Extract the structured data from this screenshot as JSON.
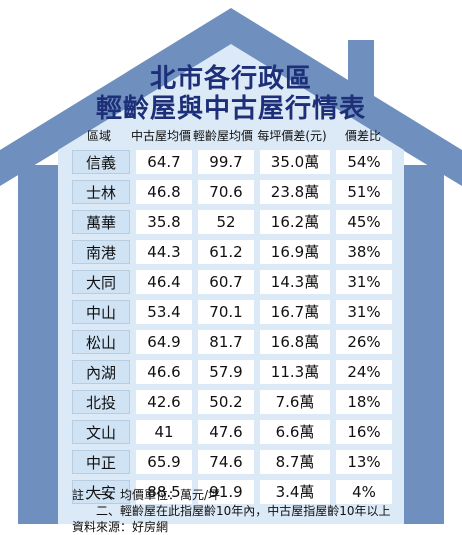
{
  "title_line1": "北市各行政區",
  "title_line2": "輕齡屋與中古屋行情表",
  "columns": [
    "區域",
    "中古屋均價",
    "輕齡屋均價",
    "每坪價差(元)",
    "價差比"
  ],
  "colors": {
    "roof": "#6f8fbe",
    "title": "#1c2f78",
    "district_cell": "#cfe3f4"
  },
  "chart_data": {
    "type": "table",
    "title": "北市各行政區輕齡屋與中古屋行情表",
    "columns": [
      "區域",
      "中古屋均價",
      "輕齡屋均價",
      "每坪價差(元)",
      "價差比"
    ],
    "rows": [
      [
        "信義",
        "64.7",
        "99.7",
        "35.0萬",
        "54%"
      ],
      [
        "士林",
        "46.8",
        "70.6",
        "23.8萬",
        "51%"
      ],
      [
        "萬華",
        "35.8",
        "52",
        "16.2萬",
        "45%"
      ],
      [
        "南港",
        "44.3",
        "61.2",
        "16.9萬",
        "38%"
      ],
      [
        "大同",
        "46.4",
        "60.7",
        "14.3萬",
        "31%"
      ],
      [
        "中山",
        "53.4",
        "70.1",
        "16.7萬",
        "31%"
      ],
      [
        "松山",
        "64.9",
        "81.7",
        "16.8萬",
        "26%"
      ],
      [
        "內湖",
        "46.6",
        "57.9",
        "11.3萬",
        "24%"
      ],
      [
        "北投",
        "42.6",
        "50.2",
        "7.6萬",
        "18%"
      ],
      [
        "文山",
        "41",
        "47.6",
        "6.6萬",
        "16%"
      ],
      [
        "中正",
        "65.9",
        "74.6",
        "8.7萬",
        "13%"
      ],
      [
        "大安",
        "88.5",
        "91.9",
        "3.4萬",
        "4%"
      ]
    ]
  },
  "notes": {
    "line1": "註：一、均價單位：萬元/坪",
    "line2": "　　二、輕齡屋在此指屋齡10年內，中古屋指屋齡10年以上",
    "line3": "資料來源：好房網"
  }
}
